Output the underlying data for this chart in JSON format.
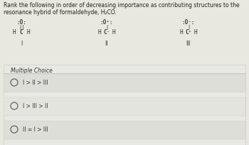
{
  "bg_color": "#e8e8e0",
  "question_bg": "#f0f0e8",
  "title": "Rank the following in order of decreasing importance as contributing structures to the resonance hybrid of formaldehyde, H₂CO.",
  "title_fontsize": 5.5,
  "title_color": "#222222",
  "mc_label": "Multiple Choice",
  "mc_fontsize": 5.5,
  "choices": [
    "I > II > III",
    "I > III > II",
    "II = I > III"
  ],
  "choice_fontsize": 5.5,
  "struct_labels": [
    "I",
    "II",
    "III"
  ],
  "panel_bg": "#deded6",
  "choice_bg": "#e8e8e0",
  "choice_selected_bg": "#d8d8d0"
}
